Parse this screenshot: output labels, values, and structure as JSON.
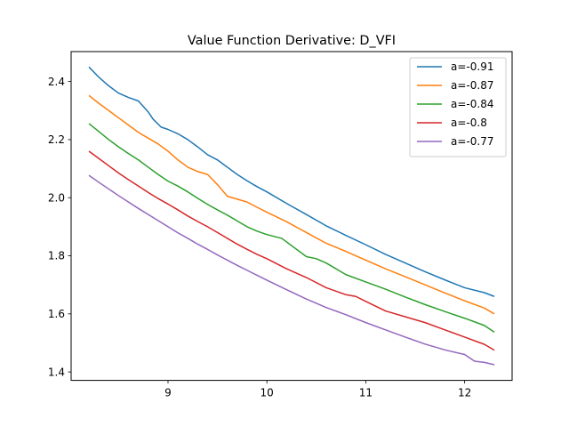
{
  "chart_data": {
    "type": "line",
    "title": "Value Function Derivative: D_VFI",
    "xlabel": "",
    "ylabel": "",
    "xlim": [
      8.02,
      12.48
    ],
    "ylim": [
      1.371,
      2.503
    ],
    "xticks": [
      9,
      10,
      11,
      12
    ],
    "yticks": [
      1.4,
      1.6,
      1.8,
      2.0,
      2.2,
      2.4
    ],
    "ytick_labels": [
      "1.4",
      "1.6",
      "1.8",
      "2.0",
      "2.2",
      "2.4"
    ],
    "legend_position": "top-right",
    "grid": false,
    "series": [
      {
        "name": "a=-0.91",
        "color": "#1f77b4",
        "x": [
          8.2,
          8.3,
          8.4,
          8.5,
          8.6,
          8.7,
          8.8,
          8.85,
          8.93,
          9.0,
          9.1,
          9.2,
          9.3,
          9.4,
          9.5,
          9.6,
          9.7,
          9.8,
          9.9,
          10.0,
          10.2,
          10.4,
          10.6,
          10.8,
          11.0,
          11.2,
          11.4,
          11.6,
          11.8,
          12.0,
          12.2,
          12.3
        ],
        "y": [
          2.45,
          2.415,
          2.385,
          2.36,
          2.345,
          2.333,
          2.295,
          2.27,
          2.243,
          2.235,
          2.22,
          2.2,
          2.175,
          2.148,
          2.13,
          2.105,
          2.08,
          2.058,
          2.038,
          2.02,
          1.98,
          1.942,
          1.903,
          1.87,
          1.838,
          1.805,
          1.775,
          1.745,
          1.717,
          1.69,
          1.673,
          1.66
        ]
      },
      {
        "name": "a=-0.87",
        "color": "#ff7f0e",
        "x": [
          8.2,
          8.3,
          8.4,
          8.5,
          8.6,
          8.7,
          8.8,
          8.9,
          9.0,
          9.1,
          9.2,
          9.3,
          9.4,
          9.5,
          9.6,
          9.7,
          9.8,
          9.9,
          10.0,
          10.2,
          10.4,
          10.6,
          10.8,
          11.0,
          11.2,
          11.4,
          11.6,
          11.8,
          12.0,
          12.2,
          12.3
        ],
        "y": [
          2.352,
          2.325,
          2.3,
          2.275,
          2.25,
          2.225,
          2.205,
          2.185,
          2.16,
          2.13,
          2.105,
          2.09,
          2.08,
          2.045,
          2.005,
          1.995,
          1.985,
          1.967,
          1.95,
          1.917,
          1.88,
          1.843,
          1.815,
          1.785,
          1.755,
          1.728,
          1.7,
          1.672,
          1.645,
          1.62,
          1.6
        ]
      },
      {
        "name": "a=-0.84",
        "color": "#2ca02c",
        "x": [
          8.2,
          8.3,
          8.4,
          8.5,
          8.6,
          8.7,
          8.8,
          8.9,
          9.0,
          9.1,
          9.2,
          9.3,
          9.4,
          9.5,
          9.6,
          9.7,
          9.8,
          9.9,
          10.0,
          10.15,
          10.4,
          10.5,
          10.6,
          10.8,
          11.0,
          11.2,
          11.4,
          11.6,
          11.8,
          12.0,
          12.2,
          12.3
        ],
        "y": [
          2.255,
          2.228,
          2.2,
          2.175,
          2.152,
          2.13,
          2.105,
          2.08,
          2.057,
          2.04,
          2.02,
          1.998,
          1.977,
          1.958,
          1.94,
          1.92,
          1.9,
          1.885,
          1.873,
          1.86,
          1.797,
          1.79,
          1.775,
          1.735,
          1.71,
          1.685,
          1.658,
          1.632,
          1.608,
          1.585,
          1.56,
          1.537
        ]
      },
      {
        "name": "a=-0.8",
        "color": "#d62728",
        "x": [
          8.2,
          8.3,
          8.4,
          8.5,
          8.6,
          8.7,
          8.8,
          8.9,
          9.0,
          9.1,
          9.2,
          9.3,
          9.4,
          9.5,
          9.6,
          9.7,
          9.8,
          9.9,
          10.0,
          10.2,
          10.4,
          10.6,
          10.8,
          10.9,
          11.0,
          11.2,
          11.4,
          11.6,
          11.8,
          12.0,
          12.2,
          12.3
        ],
        "y": [
          2.16,
          2.135,
          2.11,
          2.085,
          2.062,
          2.04,
          2.018,
          1.997,
          1.978,
          1.958,
          1.937,
          1.918,
          1.9,
          1.88,
          1.86,
          1.84,
          1.822,
          1.805,
          1.79,
          1.755,
          1.725,
          1.69,
          1.666,
          1.66,
          1.643,
          1.61,
          1.59,
          1.57,
          1.545,
          1.52,
          1.495,
          1.475
        ]
      },
      {
        "name": "a=-0.77",
        "color": "#9467bd",
        "x": [
          8.2,
          8.3,
          8.4,
          8.5,
          8.6,
          8.7,
          8.8,
          8.9,
          9.0,
          9.1,
          9.2,
          9.3,
          9.4,
          9.5,
          9.6,
          9.7,
          9.8,
          9.9,
          10.0,
          10.2,
          10.4,
          10.6,
          10.8,
          11.0,
          11.2,
          11.4,
          11.6,
          11.8,
          12.0,
          12.1,
          12.2,
          12.3
        ],
        "y": [
          2.077,
          2.053,
          2.03,
          2.007,
          1.985,
          1.963,
          1.942,
          1.921,
          1.9,
          1.879,
          1.86,
          1.84,
          1.822,
          1.803,
          1.785,
          1.767,
          1.75,
          1.733,
          1.716,
          1.683,
          1.651,
          1.622,
          1.597,
          1.57,
          1.545,
          1.52,
          1.496,
          1.476,
          1.46,
          1.437,
          1.433,
          1.425
        ]
      }
    ]
  }
}
